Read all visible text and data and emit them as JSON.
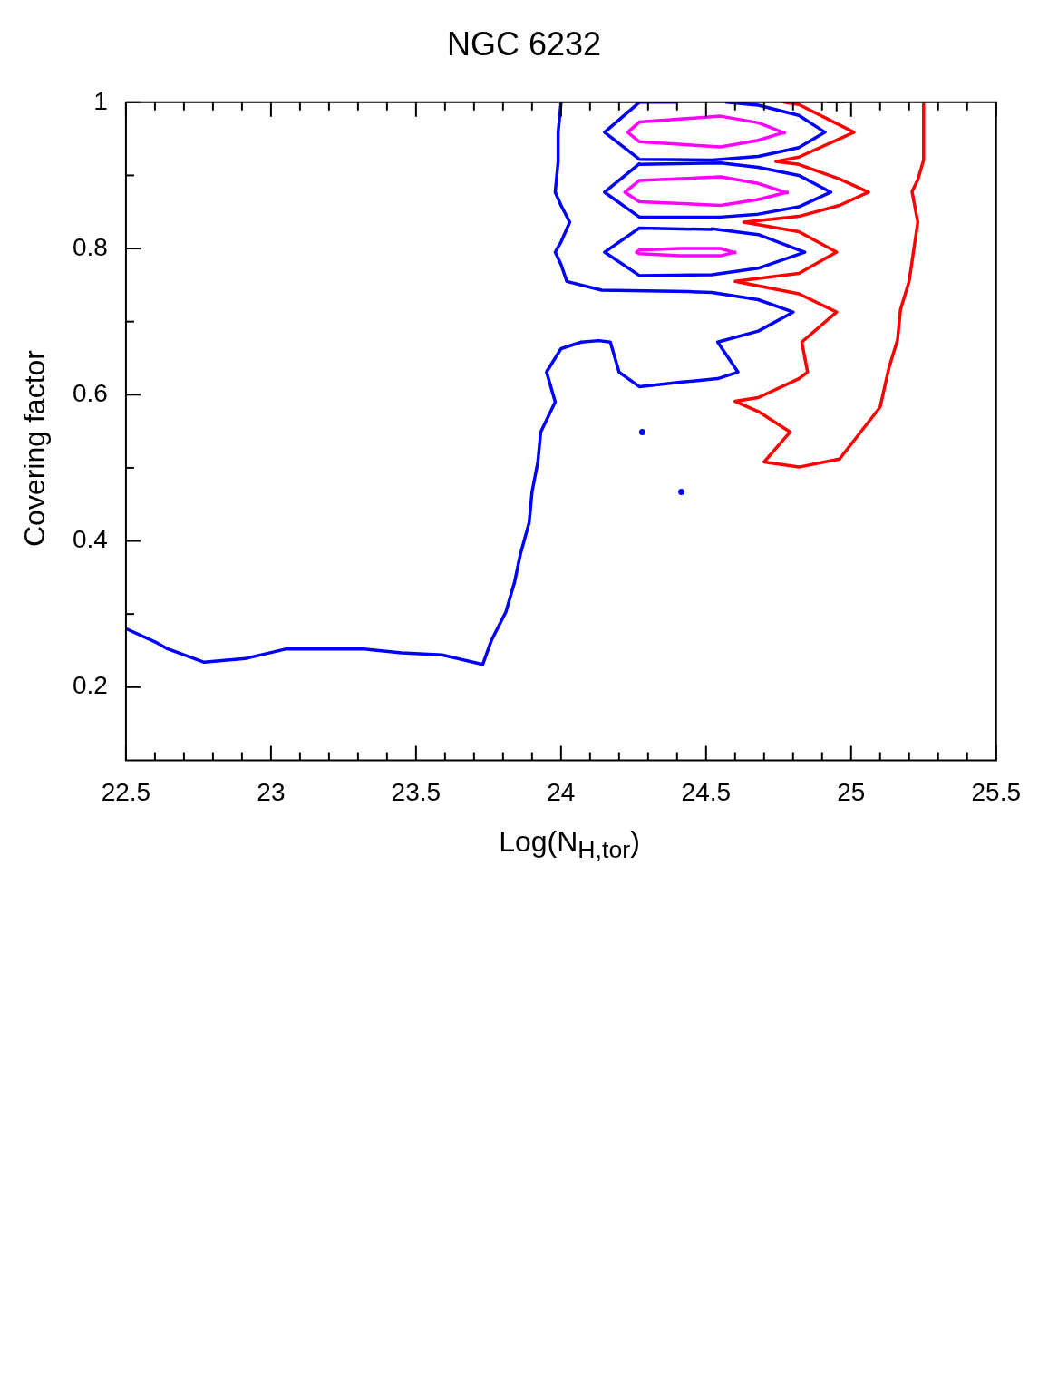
{
  "chart_data": {
    "type": "line",
    "title": "NGC 6232",
    "xlabel": "Log(N$_{H,tor}$)",
    "ylabel": "Covering factor",
    "line_style": "solid",
    "xlim": [
      22.5,
      25.5
    ],
    "ylim": [
      0.1,
      1
    ],
    "xticks": [
      22.5,
      {
        "value": 22.6,
        "label": null
      },
      {
        "value": 22.7,
        "label": null
      },
      {
        "value": 22.8,
        "label": null
      },
      {
        "value": 22.9,
        "label": null
      },
      23,
      {
        "value": 23.1,
        "label": null
      },
      {
        "value": 23.2,
        "label": null
      },
      {
        "value": 23.3,
        "label": null
      },
      {
        "value": 23.4,
        "label": null
      },
      23.5,
      {
        "value": 23.6,
        "label": null
      },
      {
        "value": 23.7,
        "label": null
      },
      {
        "value": 23.8,
        "label": null
      },
      {
        "value": 23.9,
        "label": null
      },
      24,
      {
        "value": 24.1,
        "label": null
      },
      {
        "value": 24.2,
        "label": null
      },
      {
        "value": 24.3,
        "label": null
      },
      {
        "value": 24.4,
        "label": null
      },
      24.5,
      {
        "value": 24.6,
        "label": null
      },
      {
        "value": 24.7,
        "label": null
      },
      {
        "value": 24.8,
        "label": null
      },
      {
        "value": 24.9,
        "label": null
      },
      25,
      {
        "value": 25.1,
        "label": null
      },
      {
        "value": 25.2,
        "label": null
      },
      {
        "value": 25.3,
        "label": null
      },
      {
        "value": 25.4,
        "label": null
      },
      25.5
    ],
    "yticks": [
      0.2,
      {
        "value": 0.3,
        "label": null
      },
      0.4,
      {
        "value": 0.5,
        "label": null
      },
      0.6,
      {
        "value": 0.7,
        "label": null
      },
      0.8,
      {
        "value": 0.9,
        "label": null
      },
      1
    ],
    "series": [
      {
        "color": "#ff0000",
        "x": [
          25.25,
          25.25,
          25.23,
          25.21,
          25.23,
          25.2,
          25.17,
          25.16,
          25.13,
          25.1,
          24.96,
          24.82,
          24.7,
          24.79,
          24.68,
          24.6,
          24.68,
          24.82,
          24.85,
          24.83,
          24.95,
          24.82,
          24.6,
          24.82,
          24.95,
          24.82,
          24.63,
          24.82,
          24.96,
          25.06,
          24.96,
          24.82,
          24.74,
          24.82,
          25.01,
          24.82,
          24.77
        ],
        "values": [
          1,
          0.921,
          0.894,
          0.878,
          0.836,
          0.755,
          0.716,
          0.675,
          0.636,
          0.583,
          0.512,
          0.501,
          0.508,
          0.549,
          0.577,
          0.591,
          0.596,
          0.622,
          0.631,
          0.672,
          0.713,
          0.738,
          0.755,
          0.766,
          0.795,
          0.823,
          0.836,
          0.844,
          0.859,
          0.877,
          0.895,
          0.915,
          0.919,
          0.925,
          0.959,
          0.997,
          1
        ]
      },
      {
        "color": "#0000ff",
        "x": [
          24.0,
          23.99,
          23.99,
          23.98,
          24.0,
          24.03,
          24.0,
          23.98,
          24.0,
          24.02,
          24.14,
          24.44,
          24.52,
          24.68,
          24.8,
          24.68,
          24.54,
          24.61,
          24.54,
          24.41,
          24.27,
          24.2,
          24.17,
          24.13,
          24.07,
          24.0,
          23.95,
          23.98,
          23.93,
          23.92,
          23.9,
          23.89,
          23.86,
          23.84,
          23.81,
          23.76,
          23.73,
          23.59,
          23.45,
          23.32,
          23.05,
          22.91,
          22.77,
          22.64,
          22.6,
          22.5
        ],
        "values": [
          1,
          0.959,
          0.919,
          0.877,
          0.859,
          0.836,
          0.809,
          0.795,
          0.778,
          0.755,
          0.743,
          0.741,
          0.74,
          0.73,
          0.713,
          0.687,
          0.672,
          0.631,
          0.622,
          0.617,
          0.611,
          0.631,
          0.672,
          0.674,
          0.672,
          0.663,
          0.631,
          0.59,
          0.549,
          0.508,
          0.467,
          0.425,
          0.382,
          0.344,
          0.303,
          0.264,
          0.231,
          0.244,
          0.247,
          0.252,
          0.252,
          0.239,
          0.234,
          0.253,
          0.262,
          0.28
        ]
      },
      {
        "color": "#0000ff",
        "x": [
          24.4,
          24.27,
          24.15,
          24.27,
          24.52,
          24.68,
          24.82,
          24.91,
          24.82,
          24.68,
          24.57
        ],
        "values": [
          1,
          1,
          0.959,
          0.922,
          0.921,
          0.926,
          0.938,
          0.959,
          0.982,
          0.996,
          1
        ]
      },
      {
        "color": "#0000ff",
        "x": [
          24.27,
          24.15,
          24.27,
          24.55,
          24.68,
          24.82,
          24.93,
          24.82,
          24.68,
          24.55,
          24.27
        ],
        "values": [
          0.916,
          0.877,
          0.843,
          0.843,
          0.847,
          0.857,
          0.877,
          0.9,
          0.911,
          0.917,
          0.915
        ]
      },
      {
        "color": "#0000ff",
        "x": [
          24.52,
          24.68,
          24.84,
          24.68,
          24.52,
          24.27,
          24.15,
          24.27,
          24.52
        ],
        "values": [
          0.827,
          0.819,
          0.795,
          0.773,
          0.764,
          0.763,
          0.795,
          0.828,
          0.826
        ]
      },
      {
        "type": "scatter",
        "marker": "circle",
        "color": "#0000ff",
        "x": [
          24.28,
          24.415
        ],
        "values": [
          0.549,
          0.467
        ]
      },
      {
        "color": "#ff00ff",
        "x": [
          24.77,
          24.68,
          24.55,
          24.27,
          24.23,
          24.27,
          24.55,
          24.68,
          24.77
        ],
        "values": [
          0.959,
          0.948,
          0.939,
          0.946,
          0.959,
          0.973,
          0.981,
          0.972,
          0.958
        ]
      },
      {
        "color": "#ff00ff",
        "x": [
          24.78,
          24.68,
          24.55,
          24.27,
          24.22,
          24.27,
          24.55,
          24.68,
          24.78
        ],
        "values": [
          0.877,
          0.867,
          0.859,
          0.864,
          0.877,
          0.893,
          0.898,
          0.889,
          0.876
        ]
      },
      {
        "color": "#ff00ff",
        "x": [
          24.6,
          24.55,
          24.41,
          24.27,
          24.26,
          24.27,
          24.41,
          24.55,
          24.6
        ],
        "values": [
          0.795,
          0.79,
          0.79,
          0.793,
          0.795,
          0.798,
          0.8,
          0.8,
          0.794
        ]
      },
      {
        "type": "scatter",
        "marker": "cross",
        "color": "#000000",
        "x": [
          24.95
        ],
        "values": [
          1
        ]
      }
    ]
  }
}
